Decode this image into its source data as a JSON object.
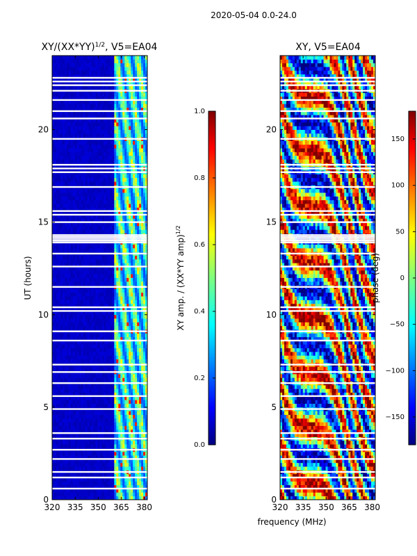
{
  "figure": {
    "suptitle": "2020-05-04 0.0-24.0",
    "xlabel": "frequency (MHz)"
  },
  "chart_data": [
    {
      "type": "heatmap",
      "title": "XY/(XX*YY)",
      "title_sup": "1/2",
      "title_suffix": ", V5=EA04",
      "xlabel": "frequency (MHz)",
      "ylabel": "UT (hours)",
      "xlim": [
        320,
        382
      ],
      "ylim": [
        0,
        24
      ],
      "xticks": [
        320,
        335,
        350,
        365,
        380
      ],
      "yticks": [
        0,
        5,
        10,
        15,
        20
      ],
      "colorbar": {
        "label": "XY amp. / (XX*YY amp)",
        "label_sup": "1/2",
        "range": [
          0.0,
          1.0
        ],
        "ticks": [
          0.0,
          0.2,
          0.4,
          0.6,
          0.8,
          1.0
        ],
        "tick_labels": [
          "0.0",
          "0.2",
          "0.4",
          "0.6",
          "0.8",
          "1.0"
        ],
        "colormap": "jet"
      },
      "description_values": {
        "low_band_MHz": [
          320,
          360
        ],
        "low_band_level": 0.05,
        "high_band_MHz": [
          360,
          382
        ],
        "high_band_level_range": [
          0.2,
          0.6
        ]
      }
    },
    {
      "type": "heatmap",
      "title": "XY, V5=EA04",
      "xlabel": "frequency (MHz)",
      "ylabel": "",
      "xlim": [
        320,
        382
      ],
      "ylim": [
        0,
        24
      ],
      "xticks": [
        320,
        335,
        350,
        365,
        380
      ],
      "yticks": [
        0,
        5,
        10,
        15,
        20
      ],
      "colorbar": {
        "label": "phase (deg)",
        "range": [
          -180,
          180
        ],
        "ticks": [
          -150,
          -100,
          -50,
          0,
          50,
          100,
          150
        ],
        "tick_labels": [
          "−150",
          "−100",
          "−50",
          "0",
          "50",
          "100",
          "150"
        ],
        "colormap": "jet"
      }
    }
  ],
  "flagged_hours": [
    0.6,
    1.2,
    1.5,
    2.2,
    2.7,
    3.3,
    3.6,
    4.9,
    5.6,
    6.3,
    6.9,
    7.3,
    8.6,
    9.1,
    10.2,
    10.4,
    11.5,
    12.6,
    13.3,
    13.9,
    14.0,
    14.1,
    14.2,
    14.3,
    15.0,
    15.4,
    15.6,
    16.9,
    17.7,
    17.9,
    18.1,
    19.5,
    20.6,
    21.0,
    21.6,
    22.1,
    22.4,
    22.6,
    22.8
  ]
}
